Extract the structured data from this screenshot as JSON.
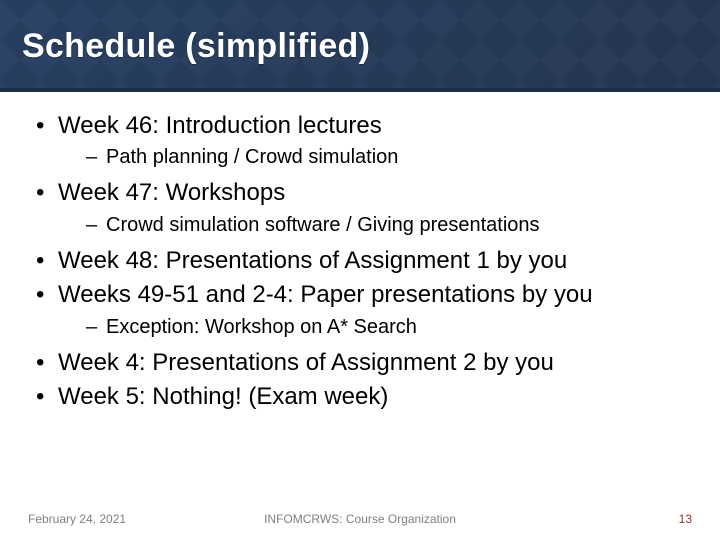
{
  "title": "Schedule (simplified)",
  "colors": {
    "header_gradient_from": "#3a4f6e",
    "header_gradient_to": "#2f4460",
    "header_overlay_from": "rgba(32,58,95,0.55)",
    "header_overlay_to": "rgba(28,41,66,0.55)",
    "header_border": "#1b2e4a",
    "title_text": "#ffffff",
    "body_text": "#000000",
    "footer_text": "#808080",
    "page_number": "#9a2f2f",
    "background": "#ffffff"
  },
  "typography": {
    "title_fontsize_pt": 26,
    "level1_fontsize_pt": 18,
    "level2_fontsize_pt": 15,
    "footer_fontsize_pt": 9,
    "font_family": "Arial"
  },
  "bullets": [
    {
      "text": "Week 46: Introduction lectures",
      "sub": [
        {
          "text": "Path planning / Crowd simulation"
        }
      ]
    },
    {
      "text": "Week 47: Workshops",
      "sub": [
        {
          "text": "Crowd simulation software / Giving presentations"
        }
      ]
    },
    {
      "text": "Week 48: Presentations of Assignment 1 by you"
    },
    {
      "text": "Weeks 49-51 and 2-4: Paper presentations by you",
      "sub": [
        {
          "text": "Exception: Workshop on A* Search"
        }
      ]
    },
    {
      "text": "Week 4: Presentations of Assignment 2 by you"
    },
    {
      "text": "Week 5: Nothing! (Exam week)"
    }
  ],
  "footer": {
    "date": "February 24, 2021",
    "course": "INFOMCRWS: Course Organization",
    "page": "13"
  }
}
